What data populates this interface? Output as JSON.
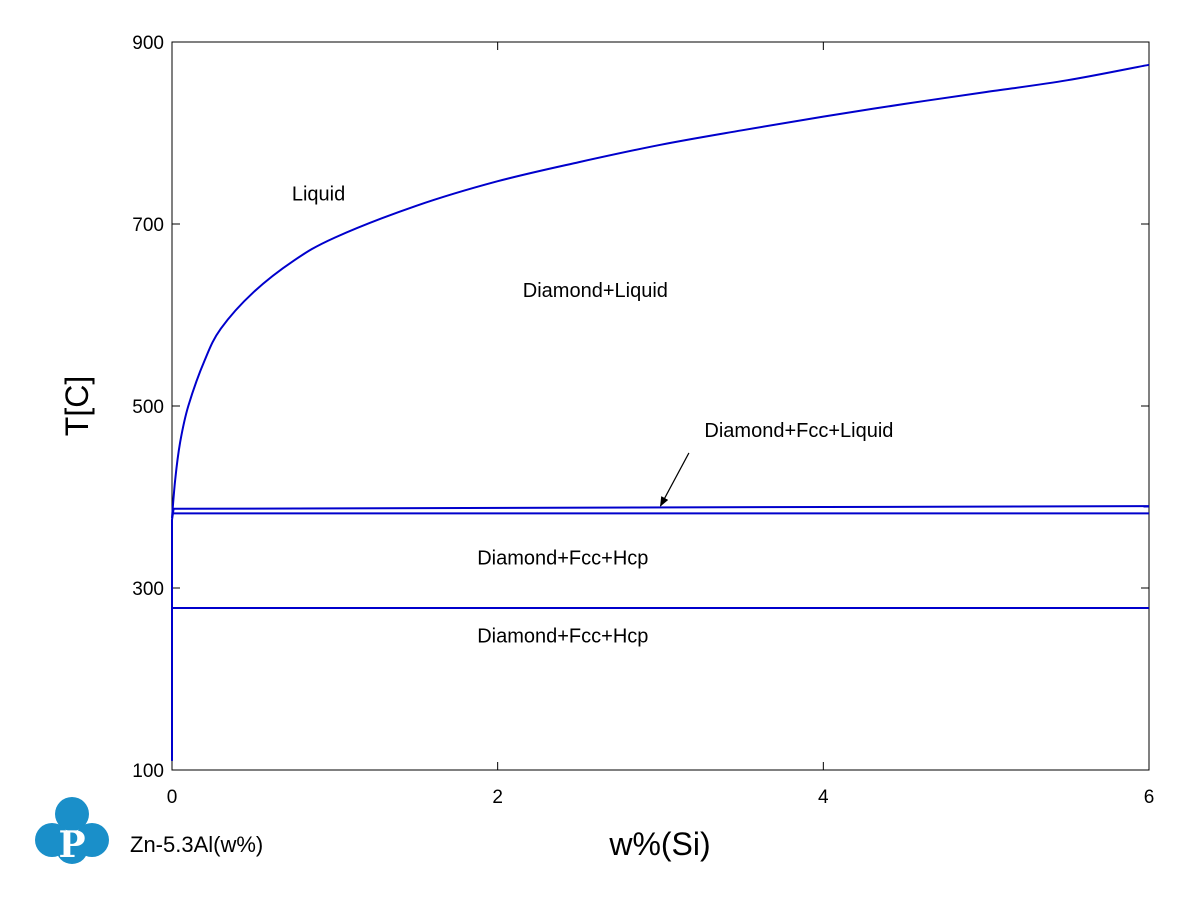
{
  "chart_data": {
    "type": "line",
    "title": "",
    "xlabel": "w%(Si)",
    "ylabel": "T[C]",
    "xlim": [
      0,
      6
    ],
    "ylim": [
      100,
      900
    ],
    "xticks": [
      0,
      2,
      4,
      6
    ],
    "yticks": [
      100,
      300,
      500,
      700,
      900
    ],
    "grid": false,
    "series": [
      {
        "color": "#0000cc",
        "x": [
          0.0,
          0.02,
          0.05,
          0.1,
          0.2,
          0.3,
          0.5,
          0.75,
          1.0,
          1.5,
          2.0,
          2.5,
          3.0,
          3.5,
          4.0,
          4.5,
          5.0,
          5.5,
          6.0
        ],
        "y": [
          377,
          420,
          460,
          500,
          550,
          585,
          625,
          660,
          685,
          720,
          747,
          768,
          787,
          803,
          818,
          832,
          845,
          858,
          875
        ]
      },
      {
        "color": "#0000cc",
        "x": [
          0.0,
          6.0
        ],
        "y": [
          387,
          390
        ]
      },
      {
        "color": "#0000cc",
        "x": [
          0.0,
          6.0
        ],
        "y": [
          382,
          382
        ]
      },
      {
        "color": "#0000cc",
        "x": [
          0.0,
          6.0
        ],
        "y": [
          278,
          278
        ]
      },
      {
        "color": "#0000cc",
        "x": [
          0.0,
          0.0,
          0.01
        ],
        "y": [
          110,
          375,
          387
        ]
      }
    ],
    "annotations": [
      {
        "text": "Liquid",
        "x": 0.9,
        "y": 726
      },
      {
        "text": "Diamond+Liquid",
        "x": 2.6,
        "y": 620
      },
      {
        "text": "Diamond+Fcc+Liquid",
        "x": 3.85,
        "y": 466,
        "arrow_to": {
          "x": 3.0,
          "y": 388
        }
      },
      {
        "text": "Diamond+Fcc+Hcp",
        "x": 2.4,
        "y": 326
      },
      {
        "text": "Diamond+Fcc+Hcp",
        "x": 2.4,
        "y": 240
      }
    ]
  },
  "footer": {
    "system_label": "Zn-5.3Al(w%)",
    "logo_letter": "P",
    "logo_color": "#1a8fc9"
  }
}
